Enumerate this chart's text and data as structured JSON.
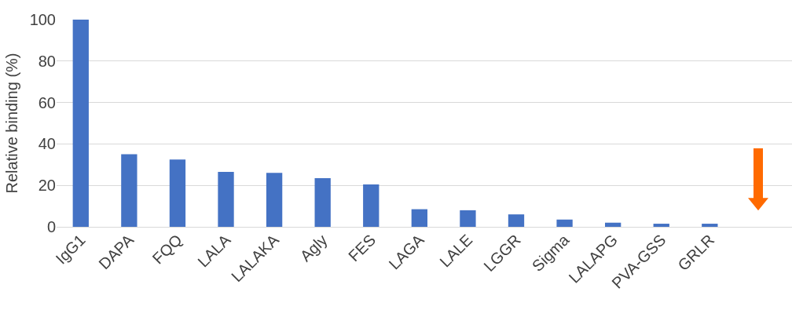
{
  "chart_data": {
    "type": "bar",
    "ylabel": "Relative binding (%)",
    "categories": [
      "IgG1",
      "DAPA",
      "FQQ",
      "LALA",
      "LALAKA",
      "Agly",
      "FES",
      "LAGA",
      "LALE",
      "LGGR",
      "Sigma",
      "LALAPG",
      "PVA-GSS",
      "GRLR",
      null
    ],
    "values": [
      100,
      35,
      32.5,
      26.5,
      26,
      23.5,
      20.5,
      8.5,
      8,
      6,
      3.5,
      2,
      1.5,
      1.5,
      0
    ],
    "color": "#4472c4",
    "ylim": [
      0,
      100
    ],
    "yticks": [
      0,
      20,
      40,
      60,
      80,
      100
    ],
    "grid": "y"
  }
}
